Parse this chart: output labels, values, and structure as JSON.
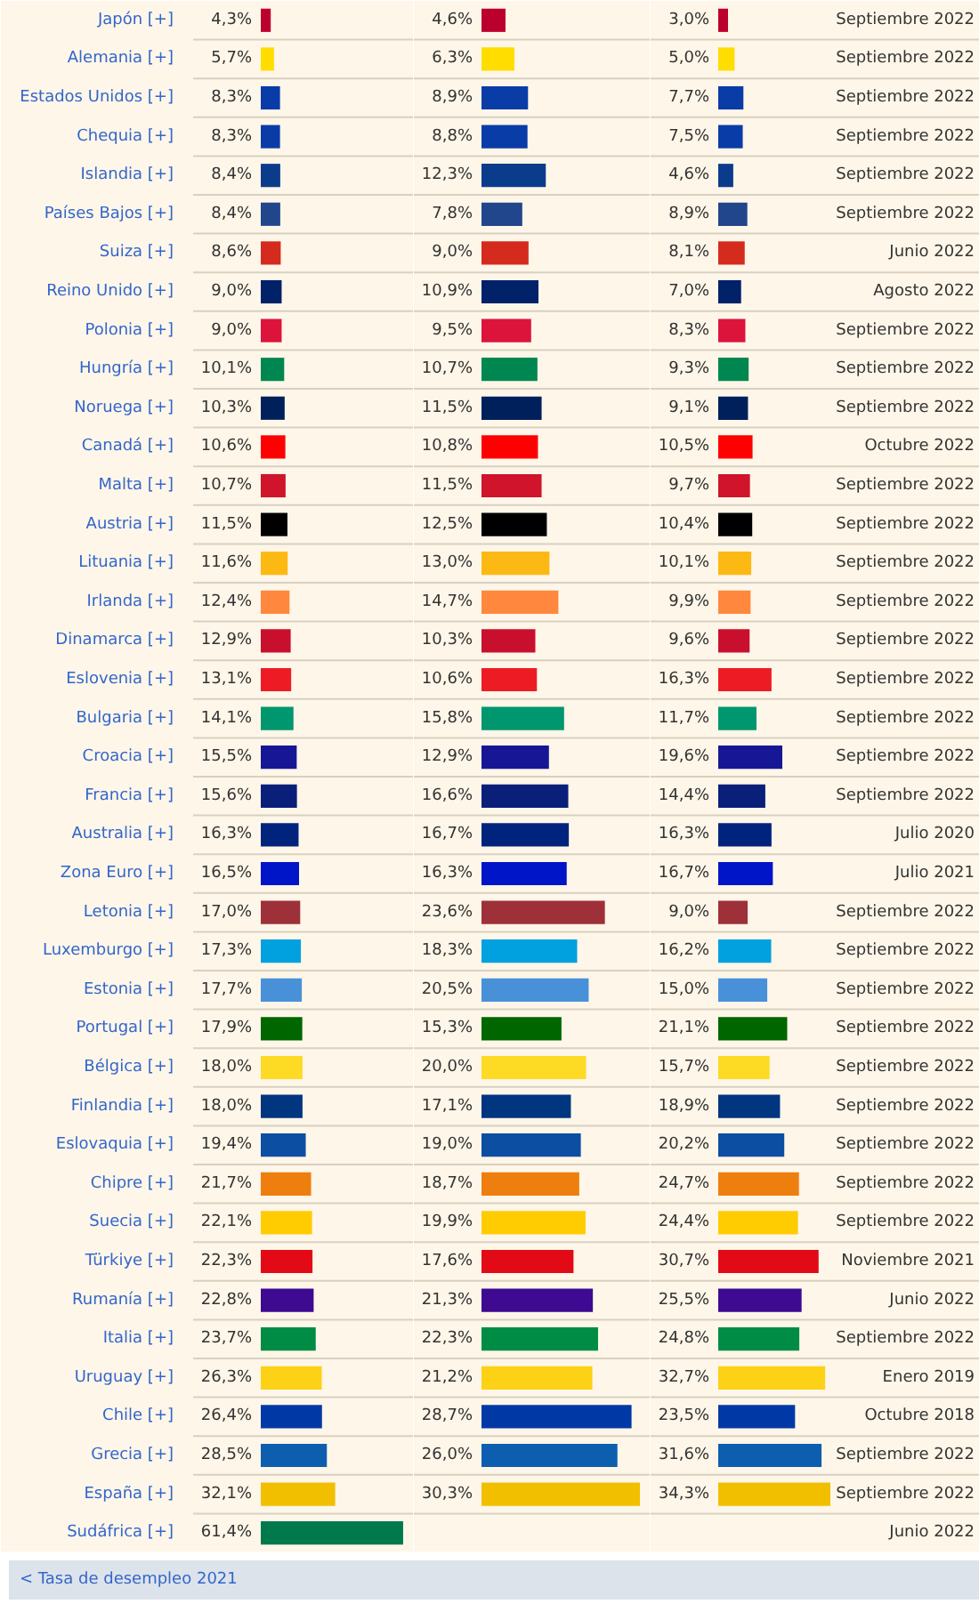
{
  "chart_data": [
    {
      "type": "bar",
      "orientation": "horizontal",
      "tick_labels": "y",
      "categories": [
        "Japón [+]",
        "Alemania [+]",
        "Estados Unidos [+]",
        "Chequia [+]",
        "Islandia [+]",
        "Países Bajos [+]",
        "Suiza [+]",
        "Reino Unido [+]",
        "Polonia [+]",
        "Hungría [+]",
        "Noruega [+]",
        "Canadá [+]",
        "Malta [+]",
        "Austria [+]",
        "Lituania [+]",
        "Irlanda [+]",
        "Dinamarca [+]",
        "Eslovenia [+]",
        "Bulgaria [+]",
        "Croacia [+]",
        "Francia [+]",
        "Australia [+]",
        "Zona Euro [+]",
        "Letonia [+]",
        "Luxemburgo [+]",
        "Estonia [+]",
        "Portugal [+]",
        "Bélgica [+]",
        "Finlandia [+]",
        "Eslovaquia [+]",
        "Chipre [+]",
        "Suecia [+]",
        "Türkiye [+]",
        "Rumanía [+]",
        "Italia [+]",
        "Uruguay [+]",
        "Chile [+]",
        "Grecia [+]",
        "España [+]",
        "Sudáfrica [+]"
      ],
      "values": [
        4.3,
        5.7,
        8.3,
        8.3,
        8.4,
        8.4,
        8.6,
        9.0,
        9.0,
        10.1,
        10.3,
        10.6,
        10.7,
        11.5,
        11.6,
        12.4,
        12.9,
        13.1,
        14.1,
        15.5,
        15.6,
        16.3,
        16.5,
        17.0,
        17.3,
        17.7,
        17.9,
        18.0,
        18.0,
        19.4,
        21.7,
        22.1,
        22.3,
        22.8,
        23.7,
        26.3,
        26.4,
        28.5,
        32.1,
        61.4
      ],
      "value_labels": [
        "4,3%",
        "5,7%",
        "8,3%",
        "8,3%",
        "8,4%",
        "8,4%",
        "8,6%",
        "9,0%",
        "9,0%",
        "10,1%",
        "10,3%",
        "10,6%",
        "10,7%",
        "11,5%",
        "11,6%",
        "12,4%",
        "12,9%",
        "13,1%",
        "14,1%",
        "15,5%",
        "15,6%",
        "16,3%",
        "16,5%",
        "17,0%",
        "17,3%",
        "17,7%",
        "17,9%",
        "18,0%",
        "18,0%",
        "19,4%",
        "21,7%",
        "22,1%",
        "22,3%",
        "22,8%",
        "23,7%",
        "26,3%",
        "26,4%",
        "28,5%",
        "32,1%",
        "61,4%"
      ],
      "colors": [
        "#bc002d",
        "#ffdd00",
        "#0a3ca8",
        "#0a3ca8",
        "#0b3c8c",
        "#21468b",
        "#d52b1e",
        "#012169",
        "#dc143c",
        "#008751",
        "#00205b",
        "#ff0000",
        "#cf142b",
        "#000000",
        "#fdb913",
        "#ff883e",
        "#c8102e",
        "#ed1c24",
        "#00966e",
        "#171796",
        "#0a1f7a",
        "#00247d",
        "#0014c8",
        "#9e3039",
        "#00a1de",
        "#4891d9",
        "#006600",
        "#fdda24",
        "#003580",
        "#0b4ea2",
        "#ee7f0f",
        "#fecc00",
        "#e30a17",
        "#3d0a91",
        "#008c45",
        "#fcd116",
        "#0039a6",
        "#0d5eaf",
        "#f1bf00",
        "#007a4d"
      ],
      "annotations": [
        "< Tasa de desempleo 2021"
      ]
    },
    {
      "type": "bar",
      "orientation": "horizontal",
      "tick_labels": false,
      "categories": [
        null,
        null,
        null,
        null,
        null,
        null,
        null,
        null,
        null,
        null,
        null,
        null,
        null,
        null,
        null,
        null,
        null,
        null,
        null,
        null,
        null,
        null,
        null,
        null,
        null,
        null,
        null,
        null,
        null,
        null,
        null,
        null,
        null,
        null,
        null,
        null,
        null,
        null,
        null,
        null
      ],
      "values": [
        4.6,
        6.3,
        8.9,
        8.8,
        12.3,
        7.8,
        9.0,
        10.9,
        9.5,
        10.7,
        11.5,
        10.8,
        11.5,
        12.5,
        13.0,
        14.7,
        10.3,
        10.6,
        15.8,
        12.9,
        16.6,
        16.7,
        16.3,
        23.6,
        18.3,
        20.5,
        15.3,
        20.0,
        17.1,
        19.0,
        18.7,
        19.9,
        17.6,
        21.3,
        22.3,
        21.2,
        28.7,
        26.0,
        30.3,
        null
      ],
      "value_labels": [
        "4,6%",
        "6,3%",
        "8,9%",
        "8,8%",
        "12,3%",
        "7,8%",
        "9,0%",
        "10,9%",
        "9,5%",
        "10,7%",
        "11,5%",
        "10,8%",
        "11,5%",
        "12,5%",
        "13,0%",
        "14,7%",
        "10,3%",
        "10,6%",
        "15,8%",
        "12,9%",
        "16,6%",
        "16,7%",
        "16,3%",
        "23,6%",
        "18,3%",
        "20,5%",
        "15,3%",
        "20,0%",
        "17,1%",
        "19,0%",
        "18,7%",
        "19,9%",
        "17,6%",
        "21,3%",
        "22,3%",
        "21,2%",
        "28,7%",
        "26,0%",
        "30,3%",
        null
      ],
      "colors": [
        "#bc002d",
        "#ffdd00",
        "#0a3ca8",
        "#0a3ca8",
        "#0b3c8c",
        "#21468b",
        "#d52b1e",
        "#012169",
        "#dc143c",
        "#008751",
        "#00205b",
        "#ff0000",
        "#cf142b",
        "#000000",
        "#fdb913",
        "#ff883e",
        "#c8102e",
        "#ed1c24",
        "#00966e",
        "#171796",
        "#0a1f7a",
        "#00247d",
        "#0014c8",
        "#9e3039",
        "#00a1de",
        "#4891d9",
        "#006600",
        "#fdda24",
        "#003580",
        "#0b4ea2",
        "#ee7f0f",
        "#fecc00",
        "#e30a17",
        "#3d0a91",
        "#008c45",
        "#fcd116",
        "#0039a6",
        "#0d5eaf",
        "#f1bf00",
        "#007a4d"
      ]
    },
    {
      "type": "bar",
      "orientation": "horizontal",
      "tick_labels": false,
      "categories": [
        null,
        null,
        null,
        null,
        null,
        null,
        null,
        null,
        null,
        null,
        null,
        null,
        null,
        null,
        null,
        null,
        null,
        null,
        null,
        null,
        null,
        null,
        null,
        null,
        null,
        null,
        null,
        null,
        null,
        null,
        null,
        null,
        null,
        null,
        null,
        null,
        null,
        null,
        null,
        null
      ],
      "values": [
        3.0,
        5.0,
        7.7,
        7.5,
        4.6,
        8.9,
        8.1,
        7.0,
        8.3,
        9.3,
        9.1,
        10.5,
        9.7,
        10.4,
        10.1,
        9.9,
        9.6,
        16.3,
        11.7,
        19.6,
        14.4,
        16.3,
        16.7,
        9.0,
        16.2,
        15.0,
        21.1,
        15.7,
        18.9,
        20.2,
        24.7,
        24.4,
        30.7,
        25.5,
        24.8,
        32.7,
        23.5,
        31.6,
        34.3,
        null
      ],
      "value_labels": [
        "3,0%",
        "5,0%",
        "7,7%",
        "7,5%",
        "4,6%",
        "8,9%",
        "8,1%",
        "7,0%",
        "8,3%",
        "9,3%",
        "9,1%",
        "10,5%",
        "9,7%",
        "10,4%",
        "10,1%",
        "9,9%",
        "9,6%",
        "16,3%",
        "11,7%",
        "19,6%",
        "14,4%",
        "16,3%",
        "16,7%",
        "9,0%",
        "16,2%",
        "15,0%",
        "21,1%",
        "15,7%",
        "18,9%",
        "20,2%",
        "24,7%",
        "24,4%",
        "30,7%",
        "25,5%",
        "24,8%",
        "32,7%",
        "23,5%",
        "31,6%",
        "34,3%",
        null
      ],
      "colors": [
        "#bc002d",
        "#ffdd00",
        "#0a3ca8",
        "#0a3ca8",
        "#0b3c8c",
        "#21468b",
        "#d52b1e",
        "#012169",
        "#dc143c",
        "#008751",
        "#00205b",
        "#ff0000",
        "#cf142b",
        "#000000",
        "#fdb913",
        "#ff883e",
        "#c8102e",
        "#ed1c24",
        "#00966e",
        "#171796",
        "#0a1f7a",
        "#00247d",
        "#0014c8",
        "#9e3039",
        "#00a1de",
        "#4891d9",
        "#006600",
        "#fdda24",
        "#003580",
        "#0b4ea2",
        "#ee7f0f",
        "#fecc00",
        "#e30a17",
        "#3d0a91",
        "#008c45",
        "#fcd116",
        "#0039a6",
        "#0d5eaf",
        "#f1bf00",
        "#007a4d"
      ],
      "annotations": [
        "Septiembre 2022",
        "Septiembre 2022",
        "Septiembre 2022",
        "Septiembre 2022",
        "Septiembre 2022",
        "Septiembre 2022",
        "Junio 2022",
        "Agosto 2022",
        "Septiembre 2022",
        "Septiembre 2022",
        "Septiembre 2022",
        "Octubre 2022",
        "Septiembre 2022",
        "Septiembre 2022",
        "Septiembre 2022",
        "Septiembre 2022",
        "Septiembre 2022",
        "Septiembre 2022",
        "Septiembre 2022",
        "Septiembre 2022",
        "Septiembre 2022",
        "Julio 2020",
        "Julio 2021",
        "Septiembre 2022",
        "Septiembre 2022",
        "Septiembre 2022",
        "Septiembre 2022",
        "Septiembre 2022",
        "Septiembre 2022",
        "Septiembre 2022",
        "Septiembre 2022",
        "Septiembre 2022",
        "Noviembre 2021",
        "Junio 2022",
        "Septiembre 2022",
        "Enero 2019",
        "Octubre 2018",
        "Septiembre 2022",
        "Septiembre 2022",
        "Junio 2022"
      ]
    }
  ]
}
